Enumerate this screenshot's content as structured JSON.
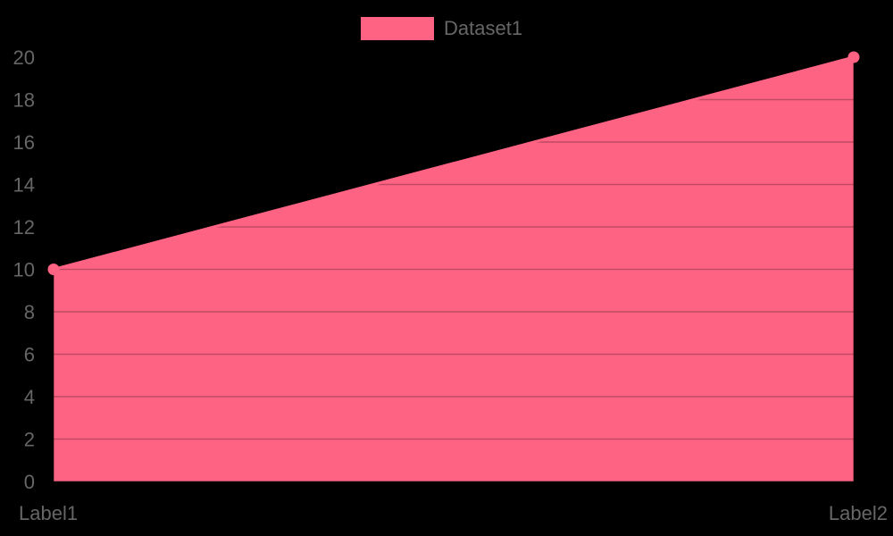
{
  "colors": {
    "background": "#000000",
    "series_fill": "#ff6384",
    "series_border": "#ff6384",
    "gridline": "rgba(0,0,0,0.25)",
    "axis_line": "rgba(0,0,0,0.3)",
    "tick_text": "#666666"
  },
  "legend": {
    "items": [
      {
        "label": "Dataset1",
        "color": "#ff6384"
      }
    ]
  },
  "chart_data": {
    "type": "area",
    "title": "",
    "xlabel": "",
    "ylabel": "",
    "categories": [
      "Label1",
      "Label2"
    ],
    "series": [
      {
        "name": "Dataset1",
        "values": [
          10,
          20
        ],
        "color": "#ff6384",
        "fill": true
      }
    ],
    "ylim": [
      0,
      20
    ],
    "y_ticks": [
      0,
      2,
      4,
      6,
      8,
      10,
      12,
      14,
      16,
      18,
      20
    ],
    "grid": true,
    "legend_position": "top"
  }
}
